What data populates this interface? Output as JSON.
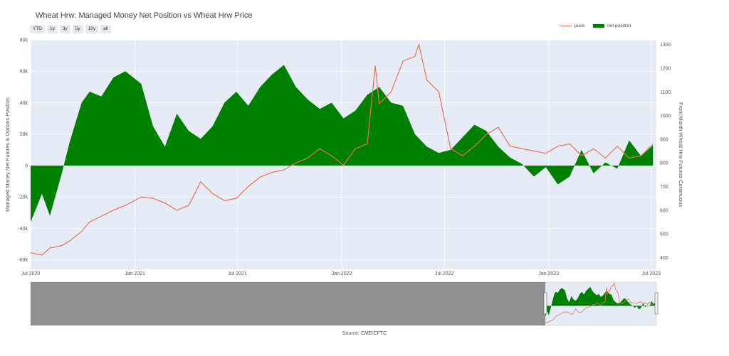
{
  "title": "Wheat Hrw: Managed Money Net Position vs Wheat Hrw Price",
  "range_buttons": [
    "YTD",
    "1y",
    "3y",
    "5y",
    "10y",
    "all"
  ],
  "legend": {
    "price": "price",
    "net": "net position"
  },
  "source": "Source: CME/CFTC",
  "colors": {
    "net": "#008000",
    "price": "#e8705a",
    "plot_bg": "#e5ecf6"
  },
  "chart_data": {
    "type": "area",
    "y_left_label": "Managed Money Net Futures & Options Position",
    "y_right_label": "Front Month Wheat Hrw Futures Continuous",
    "y_left_ticks": [
      80000,
      60000,
      40000,
      20000,
      0,
      -20000,
      -40000,
      -60000
    ],
    "y_left_tick_labels": [
      "80k",
      "60k",
      "40k",
      "20k",
      "0",
      "-20k",
      "-40k",
      "-60k"
    ],
    "y_left_range": [
      -66000,
      80000
    ],
    "y_right_ticks": [
      400,
      500,
      600,
      700,
      800,
      900,
      1000,
      1100,
      1200,
      1300
    ],
    "y_right_range": [
      350,
      1320
    ],
    "x_ticks": [
      "2020-07-01",
      "2021-01-01",
      "2021-07-01",
      "2022-01-01",
      "2022-07-01",
      "2023-01-01",
      "2023-07-01"
    ],
    "x_tick_labels": [
      "Jul 2020",
      "Jan 2021",
      "Jul 2021",
      "Jan 2022",
      "Jul 2022",
      "Jan 2023",
      "Jul 2023"
    ],
    "x_range": [
      "2020-07-01",
      "2023-07-10"
    ],
    "series": [
      {
        "name": "net position",
        "dates": [
          "2020-07-01",
          "2020-07-21",
          "2020-08-04",
          "2020-08-25",
          "2020-09-08",
          "2020-09-29",
          "2020-10-13",
          "2020-11-03",
          "2020-11-24",
          "2020-12-15",
          "2021-01-12",
          "2021-02-02",
          "2021-02-23",
          "2021-03-16",
          "2021-04-06",
          "2021-04-27",
          "2021-05-18",
          "2021-06-08",
          "2021-06-29",
          "2021-07-20",
          "2021-08-10",
          "2021-08-31",
          "2021-09-21",
          "2021-10-12",
          "2021-11-02",
          "2021-11-23",
          "2021-12-14",
          "2022-01-04",
          "2022-01-25",
          "2022-02-15",
          "2022-03-08",
          "2022-03-29",
          "2022-04-19",
          "2022-05-10",
          "2022-05-31",
          "2022-06-21",
          "2022-07-12",
          "2022-08-02",
          "2022-08-23",
          "2022-09-13",
          "2022-10-04",
          "2022-10-25",
          "2022-11-15",
          "2022-12-06",
          "2022-12-27",
          "2023-01-17",
          "2023-02-07",
          "2023-02-28",
          "2023-03-21",
          "2023-04-11",
          "2023-05-02",
          "2023-05-23",
          "2023-06-13",
          "2023-07-04"
        ],
        "values": [
          -36000,
          -18000,
          -32000,
          -5000,
          15000,
          40000,
          47000,
          44000,
          56000,
          60000,
          52000,
          25000,
          12000,
          33000,
          22000,
          17000,
          25000,
          40000,
          47000,
          38000,
          50000,
          58000,
          64000,
          50000,
          42000,
          36000,
          40000,
          30000,
          35000,
          45000,
          50000,
          40000,
          38000,
          20000,
          12000,
          8000,
          10000,
          18000,
          26000,
          22000,
          12000,
          5000,
          1000,
          -7000,
          -1000,
          -12000,
          -7000,
          10000,
          -5000,
          2000,
          -2000,
          16000,
          6000,
          13000
        ]
      },
      {
        "name": "price",
        "dates": [
          "2020-07-01",
          "2020-07-21",
          "2020-08-04",
          "2020-08-25",
          "2020-09-08",
          "2020-09-29",
          "2020-10-13",
          "2020-11-03",
          "2020-11-24",
          "2020-12-15",
          "2021-01-12",
          "2021-02-02",
          "2021-02-23",
          "2021-03-16",
          "2021-04-06",
          "2021-04-27",
          "2021-05-18",
          "2021-06-08",
          "2021-06-29",
          "2021-07-20",
          "2021-08-10",
          "2021-08-31",
          "2021-09-21",
          "2021-10-12",
          "2021-11-02",
          "2021-11-23",
          "2021-12-14",
          "2022-01-04",
          "2022-01-25",
          "2022-02-15",
          "2022-03-01",
          "2022-03-08",
          "2022-03-29",
          "2022-04-19",
          "2022-05-10",
          "2022-05-17",
          "2022-05-31",
          "2022-06-21",
          "2022-07-12",
          "2022-08-02",
          "2022-08-23",
          "2022-09-13",
          "2022-10-04",
          "2022-10-25",
          "2022-11-15",
          "2022-12-06",
          "2022-12-27",
          "2023-01-17",
          "2023-02-07",
          "2023-02-28",
          "2023-03-21",
          "2023-04-11",
          "2023-05-02",
          "2023-05-23",
          "2023-06-13",
          "2023-07-04"
        ],
        "values": [
          420,
          410,
          440,
          450,
          470,
          510,
          550,
          575,
          600,
          620,
          655,
          650,
          630,
          600,
          620,
          720,
          670,
          640,
          650,
          700,
          740,
          760,
          770,
          800,
          820,
          860,
          830,
          790,
          860,
          880,
          1210,
          1050,
          1100,
          1230,
          1250,
          1300,
          1150,
          1100,
          860,
          830,
          870,
          920,
          950,
          870,
          860,
          850,
          840,
          870,
          880,
          830,
          860,
          820,
          870,
          820,
          830,
          880
        ]
      }
    ],
    "grid": true,
    "legend_position": "top-right",
    "range_slider": true
  }
}
